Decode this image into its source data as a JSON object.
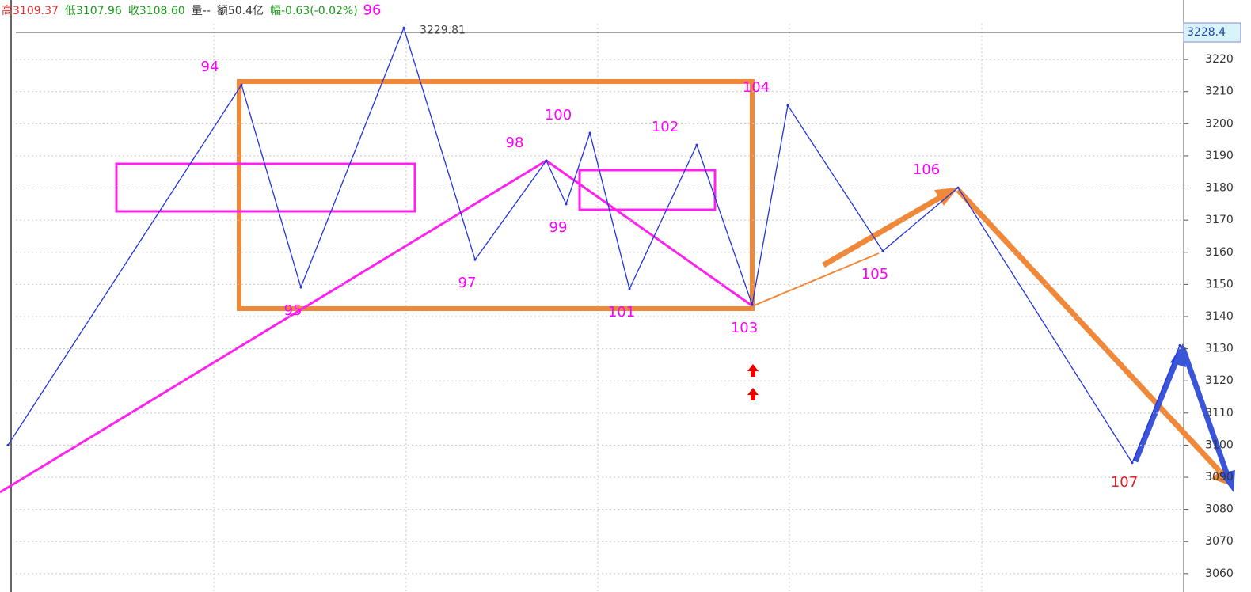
{
  "chart_data": {
    "type": "line",
    "info": [
      {
        "text": "高3109.37",
        "color": "#e03030"
      },
      {
        "text": "低3107.96",
        "color": "#1a9a1a"
      },
      {
        "text": "收3108.60",
        "color": "#1a9a1a"
      },
      {
        "text": "量--",
        "color": "#333333"
      },
      {
        "text": "额50.4亿",
        "color": "#333333"
      },
      {
        "text": "幅-0.63(-0.02%)",
        "color": "#1a9a1a"
      }
    ],
    "x": [
      2,
      61,
      76,
      102,
      120,
      138,
      143,
      149,
      159,
      176,
      190,
      199,
      223,
      242,
      286,
      298
    ],
    "values": [
      3100,
      3212.1,
      3149.1,
      3229.81,
      3157.7,
      3188.5,
      3175.0,
      3197.1,
      3148.6,
      3193.4,
      3143.7,
      3205.7,
      3160.4,
      3180.1,
      3094.5,
      3131
    ],
    "value_labels": [
      null,
      null,
      null,
      "3229.81",
      null,
      null,
      null,
      null,
      null,
      null,
      null,
      null,
      null,
      null,
      null,
      null
    ],
    "point_labels": [
      null,
      "94",
      "95",
      "96",
      "97",
      "98",
      "99",
      "100",
      "101",
      "102",
      "103",
      "104",
      "105",
      "106",
      "107",
      null
    ],
    "label_colors": [
      "#ff00ff",
      "#ff00ff",
      "#ff00ff",
      "#ff00ff",
      "#ff00ff",
      "#ff00ff",
      "#ff00ff",
      "#ff00ff",
      "#ff00ff",
      "#ff00ff",
      "#ff00ff",
      "#ff00ff",
      "#ff00ff",
      "#ff00ff",
      "#e02020",
      "#ff00ff"
    ],
    "color": "#2233dd",
    "last_price": 3228.4,
    "xlim": [
      0,
      299
    ],
    "ylim": [
      3054.3,
      3238.5
    ],
    "yticks": [
      3060,
      3070,
      3080,
      3090,
      3100,
      3110,
      3120,
      3130,
      3140,
      3150,
      3160,
      3170,
      3180,
      3190,
      3200,
      3210,
      3220
    ],
    "grid": true
  }
}
